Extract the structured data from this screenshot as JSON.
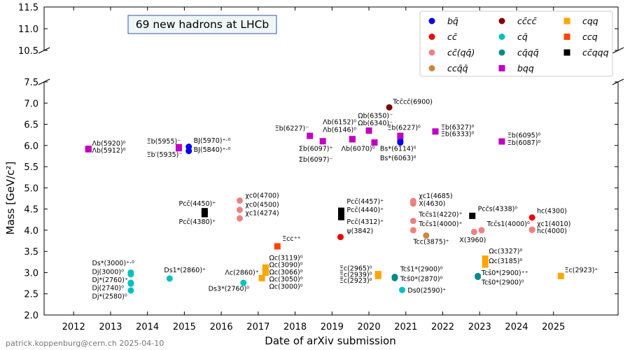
{
  "chart_data": {
    "type": "scatter",
    "title": "69 new hadrons at LHCb",
    "xlabel": "Date of arXiv submission",
    "ylabel": "Mass [GeV/c²]",
    "footer": "patrick.koppenburg@cern.ch 2025-04-10",
    "x_ticks": [
      "2012",
      "2013",
      "2014",
      "2015",
      "2016",
      "2017",
      "2018",
      "2019",
      "2020",
      "2021",
      "2022",
      "2023",
      "2024",
      "2025"
    ],
    "ylim_lower": [
      2.0,
      7.5
    ],
    "ylim_upper": [
      10.5,
      11.5
    ],
    "y_ticks_lower": [
      "2.0",
      "2.5",
      "3.0",
      "3.5",
      "4.0",
      "4.5",
      "5.0",
      "5.5",
      "6.0",
      "6.5",
      "7.0",
      "7.5"
    ],
    "y_ticks_upper": [
      "10.5",
      "11.0",
      "11.5"
    ],
    "axis_break": true,
    "legend_placement": "top-right",
    "legend": [
      {
        "key": "bq",
        "label": "bq̄",
        "marker": "circle",
        "color": "#0000ee"
      },
      {
        "key": "cc",
        "label": "cc̄",
        "marker": "circle",
        "color": "#ee0000"
      },
      {
        "key": "ccqq",
        "label": "cc̄(qq̄)",
        "marker": "circle",
        "color": "#f08080"
      },
      {
        "key": "ccqbar",
        "label": "ccq̄q̄",
        "marker": "circle",
        "color": "#cd853f"
      },
      {
        "key": "cccc",
        "label": "cc̄cc̄",
        "marker": "circle",
        "color": "#800000"
      },
      {
        "key": "cq",
        "label": "cq̄",
        "marker": "circle",
        "color": "#00c0c0"
      },
      {
        "key": "cqqq",
        "label": "cq̄qq̄",
        "marker": "circle",
        "color": "#008b8b"
      },
      {
        "key": "bqq",
        "label": "bqq",
        "marker": "square",
        "color": "#c000c0"
      },
      {
        "key": "cqq",
        "label": "cqq",
        "marker": "square",
        "color": "#ffa500"
      },
      {
        "key": "ccq",
        "label": "ccq",
        "marker": "square",
        "color": "#ff4500"
      },
      {
        "key": "ccqqq",
        "label": "cc̄qqq",
        "marker": "square",
        "color": "#000000"
      }
    ],
    "series": [
      {
        "type": "bq",
        "points": [
          [
            2015.12,
            5.97
          ],
          [
            2015.12,
            5.87
          ],
          [
            2020.85,
            6.11
          ],
          [
            2020.85,
            6.07
          ]
        ]
      },
      {
        "type": "cc",
        "points": [
          [
            2019.23,
            3.84
          ],
          [
            2024.42,
            4.3
          ],
          [
            2024.42,
            4.01
          ]
        ]
      },
      {
        "type": "ccqq",
        "points": [
          [
            2016.5,
            4.7
          ],
          [
            2016.5,
            4.48
          ],
          [
            2016.5,
            4.28
          ],
          [
            2021.2,
            4.69
          ],
          [
            2021.2,
            4.63
          ],
          [
            2021.2,
            4.22
          ],
          [
            2021.2,
            4.0
          ],
          [
            2022.85,
            3.96
          ],
          [
            2023.05,
            4.0
          ],
          [
            2024.42,
            4.01
          ]
        ]
      },
      {
        "type": "ccqbar",
        "points": [
          [
            2021.55,
            3.875
          ]
        ]
      },
      {
        "type": "cccc",
        "points": [
          [
            2020.55,
            6.9
          ]
        ]
      },
      {
        "type": "cq",
        "points": [
          [
            2013.55,
            3.0
          ],
          [
            2013.55,
            2.96
          ],
          [
            2013.55,
            2.76
          ],
          [
            2013.55,
            2.74
          ],
          [
            2013.55,
            2.58
          ],
          [
            2014.6,
            2.86
          ],
          [
            2016.6,
            2.76
          ],
          [
            2020.9,
            2.59
          ]
        ]
      },
      {
        "type": "cqqq",
        "points": [
          [
            2020.7,
            2.9
          ],
          [
            2020.7,
            2.87
          ],
          [
            2022.95,
            2.92
          ],
          [
            2022.95,
            2.9
          ]
        ]
      },
      {
        "type": "bqq",
        "points": [
          [
            2012.4,
            5.92
          ],
          [
            2012.4,
            5.91
          ],
          [
            2014.85,
            5.96
          ],
          [
            2014.85,
            5.935
          ],
          [
            2018.4,
            6.227
          ],
          [
            2018.75,
            6.1
          ],
          [
            2019.55,
            6.15
          ],
          [
            2019.55,
            6.146
          ],
          [
            2020.0,
            6.35
          ],
          [
            2020.15,
            6.07
          ],
          [
            2020.85,
            6.227
          ],
          [
            2021.8,
            6.33
          ],
          [
            2023.6,
            6.095
          ]
        ]
      },
      {
        "type": "cqq",
        "points": [
          [
            2017.1,
            2.87
          ],
          [
            2017.2,
            3.12
          ],
          [
            2017.2,
            3.09
          ],
          [
            2017.2,
            3.07
          ],
          [
            2017.2,
            3.05
          ],
          [
            2017.2,
            3.0
          ],
          [
            2020.25,
            2.965
          ],
          [
            2020.25,
            2.94
          ],
          [
            2020.25,
            2.92
          ],
          [
            2023.15,
            3.33
          ],
          [
            2023.15,
            3.19
          ],
          [
            2025.2,
            2.92
          ]
        ]
      },
      {
        "type": "ccq",
        "points": [
          [
            2017.52,
            3.62
          ]
        ]
      },
      {
        "type": "ccqqq",
        "points": [
          [
            2015.55,
            4.45
          ],
          [
            2015.55,
            4.38
          ],
          [
            2019.25,
            4.46
          ],
          [
            2019.25,
            4.44
          ],
          [
            2019.25,
            4.31
          ],
          [
            2022.8,
            4.34
          ]
        ]
      }
    ],
    "annotations": [
      {
        "text": "Λb(5920)⁰",
        "x": 2012.5,
        "y": 6.0
      },
      {
        "text": "Λb(5912)⁰",
        "x": 2012.5,
        "y": 5.83
      },
      {
        "text": "Ξb(5955)⁻",
        "x": 2013.98,
        "y": 6.05
      },
      {
        "text": "Ξb′(5935)⁻",
        "x": 2013.98,
        "y": 5.73
      },
      {
        "text": "BJ(5970)⁺·⁰",
        "x": 2015.25,
        "y": 6.06
      },
      {
        "text": "BJ(5840)⁺·⁰",
        "x": 2015.25,
        "y": 5.85
      },
      {
        "text": "Ξb(6227)⁻",
        "x": 2017.45,
        "y": 6.35
      },
      {
        "text": "Λb(6152)⁰",
        "x": 2018.75,
        "y": 6.5
      },
      {
        "text": "Λb(6146)⁰",
        "x": 2018.75,
        "y": 6.32
      },
      {
        "text": "Ωb(6350)⁻",
        "x": 2019.7,
        "y": 6.65
      },
      {
        "text": "Ωb(6340)⁻",
        "x": 2019.7,
        "y": 6.48
      },
      {
        "text": "Ξb(6227)⁰",
        "x": 2020.5,
        "y": 6.37
      },
      {
        "text": "Σb(6097)⁺",
        "x": 2018.1,
        "y": 5.87
      },
      {
        "text": "Σb(6097)⁻",
        "x": 2018.1,
        "y": 5.62
      },
      {
        "text": "Λb(6070)⁰",
        "x": 2019.25,
        "y": 5.87
      },
      {
        "text": "Bs*(6114)⁰",
        "x": 2020.3,
        "y": 5.87
      },
      {
        "text": "Bs*(6063)⁰",
        "x": 2020.3,
        "y": 5.65
      },
      {
        "text": "Tcc̄cc̄(6900)",
        "x": 2020.65,
        "y": 6.98
      },
      {
        "text": "Ξb(6327)⁰",
        "x": 2021.95,
        "y": 6.38
      },
      {
        "text": "Ξb(6333)⁰",
        "x": 2021.95,
        "y": 6.22
      },
      {
        "text": "Ξb(6095)⁰",
        "x": 2023.75,
        "y": 6.19
      },
      {
        "text": "Ξb(6087)⁰",
        "x": 2023.75,
        "y": 6.01
      },
      {
        "text": "Pcc̄(4450)⁺",
        "x": 2014.85,
        "y": 4.58
      },
      {
        "text": "Pcc̄(4380)⁺",
        "x": 2014.85,
        "y": 4.15
      },
      {
        "text": "χc0(4700)",
        "x": 2016.65,
        "y": 4.77
      },
      {
        "text": "χc0(4500)",
        "x": 2016.65,
        "y": 4.55
      },
      {
        "text": "χc1(4274)",
        "x": 2016.65,
        "y": 4.35
      },
      {
        "text": "Ξcc⁺⁺",
        "x": 2017.65,
        "y": 3.75
      },
      {
        "text": "Pcc̄(4457)⁺",
        "x": 2019.4,
        "y": 4.63
      },
      {
        "text": "Pcc̄(4440)⁺",
        "x": 2019.4,
        "y": 4.43
      },
      {
        "text": "Pcc̄(4312)⁺",
        "x": 2019.4,
        "y": 4.15
      },
      {
        "text": "ψ(3842)",
        "x": 2019.4,
        "y": 3.93
      },
      {
        "text": "χc1(4685)",
        "x": 2021.35,
        "y": 4.76
      },
      {
        "text": "X(4630)",
        "x": 2021.35,
        "y": 4.58
      },
      {
        "text": "Tcc̄s1(4220)⁺",
        "x": 2021.35,
        "y": 4.32
      },
      {
        "text": "Tcc̄s1(4000)⁺",
        "x": 2021.35,
        "y": 4.1
      },
      {
        "text": "Tcc(3875)⁺",
        "x": 2021.2,
        "y": 3.68
      },
      {
        "text": "Pcc̄s(4338)⁰",
        "x": 2022.95,
        "y": 4.45
      },
      {
        "text": "X(3960)",
        "x": 2022.45,
        "y": 3.72
      },
      {
        "text": "Tcc̄s1(4000)⁰",
        "x": 2023.2,
        "y": 4.1
      },
      {
        "text": "hc(4300)",
        "x": 2024.55,
        "y": 4.4
      },
      {
        "text": "χc1(4010)",
        "x": 2024.55,
        "y": 4.1
      },
      {
        "text": "hc(4000)",
        "x": 2024.55,
        "y": 3.93
      },
      {
        "text": "Ds*(3000)⁺·⁰",
        "x": 2012.5,
        "y": 3.17
      },
      {
        "text": "Dj(3000)⁰",
        "x": 2012.5,
        "y": 2.97
      },
      {
        "text": "Dj*(2760)⁺",
        "x": 2012.5,
        "y": 2.78
      },
      {
        "text": "Dj(2740)⁰",
        "x": 2012.5,
        "y": 2.59
      },
      {
        "text": "Dj*(2580)⁰",
        "x": 2012.5,
        "y": 2.39
      },
      {
        "text": "Ds1*(2860)⁺",
        "x": 2014.45,
        "y": 3.01
      },
      {
        "text": "Ds3*(2760)⁰",
        "x": 2015.65,
        "y": 2.57
      },
      {
        "text": "Λc(2860)⁺",
        "x": 2016.1,
        "y": 2.95
      },
      {
        "text": "Ωc(3119)⁰",
        "x": 2017.3,
        "y": 3.3
      },
      {
        "text": "Ωc(3090)⁰",
        "x": 2017.3,
        "y": 3.13
      },
      {
        "text": "Ωc(3066)⁰",
        "x": 2017.3,
        "y": 2.96
      },
      {
        "text": "Ωc(3050)⁰",
        "x": 2017.3,
        "y": 2.79
      },
      {
        "text": "Ωc(3000)⁰",
        "x": 2017.3,
        "y": 2.62
      },
      {
        "text": "Ξc(2965)⁰",
        "x": 2019.2,
        "y": 3.05
      },
      {
        "text": "Ξc(2939)⁰",
        "x": 2019.2,
        "y": 2.9
      },
      {
        "text": "Ξc(2923)⁰",
        "x": 2019.2,
        "y": 2.76
      },
      {
        "text": "Tcs̄1*(2900)⁰",
        "x": 2020.85,
        "y": 3.03
      },
      {
        "text": "Tcs̄0*(2870)⁰",
        "x": 2020.85,
        "y": 2.8
      },
      {
        "text": "Ds0(2590)⁺",
        "x": 2021.05,
        "y": 2.53
      },
      {
        "text": "Ωc(3327)⁰",
        "x": 2023.25,
        "y": 3.45
      },
      {
        "text": "Ωc(3185)⁰",
        "x": 2023.25,
        "y": 3.22
      },
      {
        "text": "Tcs̄0*(2900)⁺⁺",
        "x": 2023.05,
        "y": 2.94
      },
      {
        "text": "Tcs̄0*(2900)⁰",
        "x": 2023.05,
        "y": 2.72
      },
      {
        "text": "Ξc(2923)⁺",
        "x": 2025.3,
        "y": 3.01
      }
    ]
  }
}
